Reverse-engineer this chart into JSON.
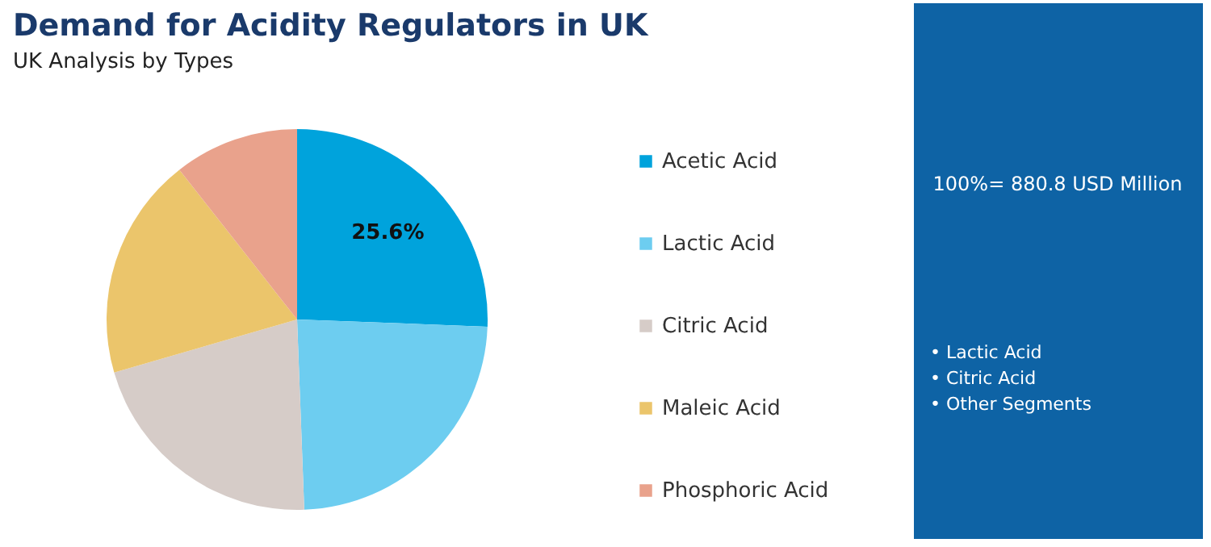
{
  "chart_data": {
    "type": "pie",
    "title": "Demand for Acidity Regulators in UK",
    "subtitle": "UK Analysis by Types",
    "categories": [
      "Acetic Acid",
      "Lactic Acid",
      "Citric Acid",
      "Maleic Acid",
      "Phosphoric Acid"
    ],
    "values": [
      25.6,
      23.8,
      21.1,
      18.9,
      10.6
    ],
    "colors": [
      "#00a3dc",
      "#6dcdf0",
      "#d6ccc8",
      "#ebc56b",
      "#e9a28c"
    ],
    "value_labels": [
      "25.6%",
      null,
      null,
      null,
      null
    ],
    "legend": "right",
    "annotations": [
      "100%= 880.8 USD Million",
      "• Lactic Acid",
      "• Citric Acid",
      "• Other Segments"
    ]
  }
}
